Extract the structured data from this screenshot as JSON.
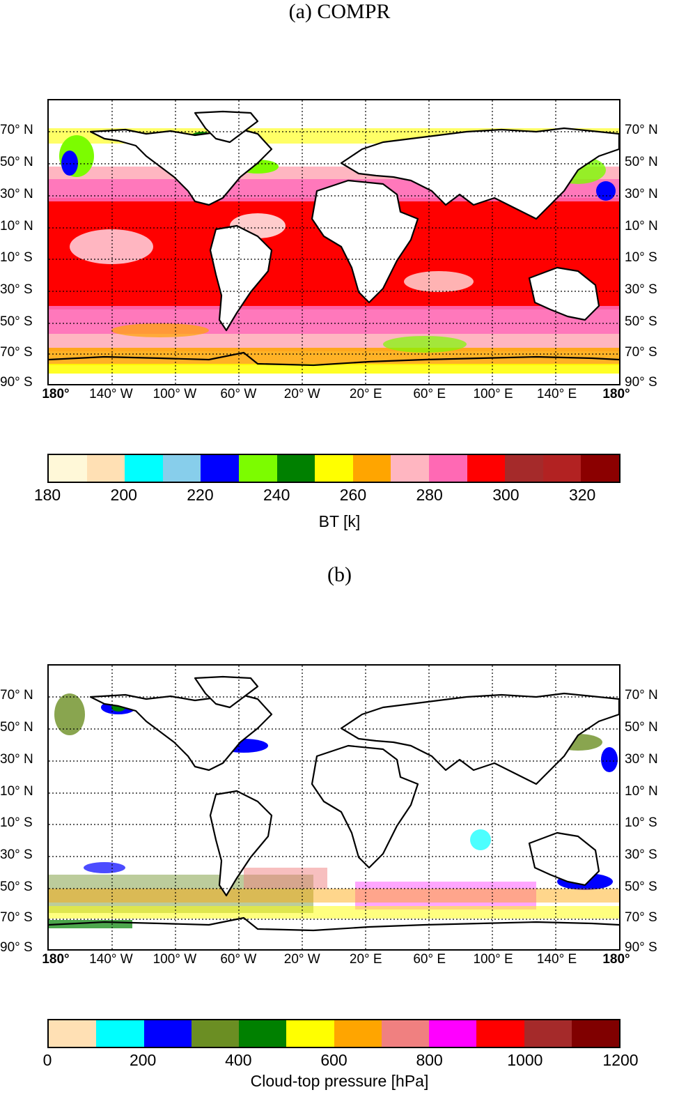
{
  "panel_a": {
    "title": "(a) COMPR",
    "lat_labels": [
      "70° N",
      "50° N",
      "30° N",
      "10° N",
      "10° S",
      "30° S",
      "50° S",
      "70° S",
      "90° S"
    ],
    "lon_labels": [
      "180°",
      "140° W",
      "100° W",
      "60° W",
      "20° W",
      "20° E",
      "60° E",
      "100° E",
      "140° E",
      "180°"
    ],
    "colorbar": {
      "title": "BT [k]",
      "ticks": [
        "180",
        "200",
        "220",
        "240",
        "260",
        "280",
        "300",
        "320"
      ],
      "range": [
        180,
        330
      ],
      "colors": [
        "#fff8d8",
        "#ffe0b4",
        "#00ffff",
        "#87ceeb",
        "#0000ff",
        "#7cfc00",
        "#008000",
        "#ffff00",
        "#ffa500",
        "#ffb6c1",
        "#ff69b4",
        "#ff0000",
        "#a52a2a",
        "#b22222",
        "#8b0000"
      ]
    }
  },
  "panel_b": {
    "title": "(b)",
    "lat_labels": [
      "70° N",
      "50° N",
      "30° N",
      "10° N",
      "10° S",
      "30° S",
      "50° S",
      "70° S",
      "90° S"
    ],
    "lon_labels": [
      "180°",
      "140° W",
      "100° W",
      "60° W",
      "20° W",
      "20° E",
      "60° E",
      "100° E",
      "140° E",
      "180°"
    ],
    "colorbar": {
      "title": "Cloud-top pressure [hPa]",
      "ticks": [
        "0",
        "200",
        "400",
        "600",
        "800",
        "1000",
        "1200"
      ],
      "range": [
        0,
        1200
      ],
      "colors": [
        "#ffe0b4",
        "#00ffff",
        "#0000ff",
        "#6b8e23",
        "#008000",
        "#ffff00",
        "#ffa500",
        "#f08080",
        "#ff00ff",
        "#ff0000",
        "#a52a2a",
        "#800000"
      ]
    }
  }
}
